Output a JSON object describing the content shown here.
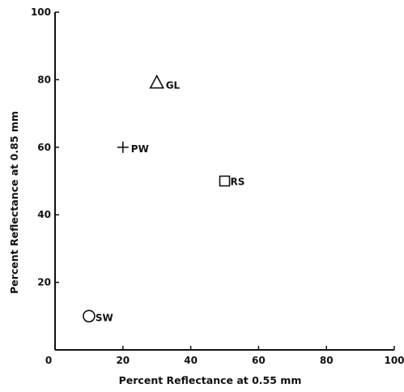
{
  "chart_data": {
    "type": "scatter",
    "xlabel": "Percent Reflectance at 0.55 mm",
    "ylabel": "Percent Reflectance at 0.85 mm",
    "xlim": [
      0,
      100
    ],
    "ylim": [
      0,
      100
    ],
    "grid": false,
    "x_ticks": [
      "0",
      "20",
      "40",
      "60",
      "80",
      "100"
    ],
    "y_ticks": [
      "20",
      "40",
      "60",
      "80",
      "100"
    ],
    "points": [
      {
        "label": "GL",
        "x": 30,
        "y": 79,
        "marker": "triangle"
      },
      {
        "label": "PW",
        "x": 20,
        "y": 60,
        "marker": "plus"
      },
      {
        "label": "RS",
        "x": 50,
        "y": 50,
        "marker": "square"
      },
      {
        "label": "SW",
        "x": 10,
        "y": 10,
        "marker": "circle"
      }
    ]
  }
}
